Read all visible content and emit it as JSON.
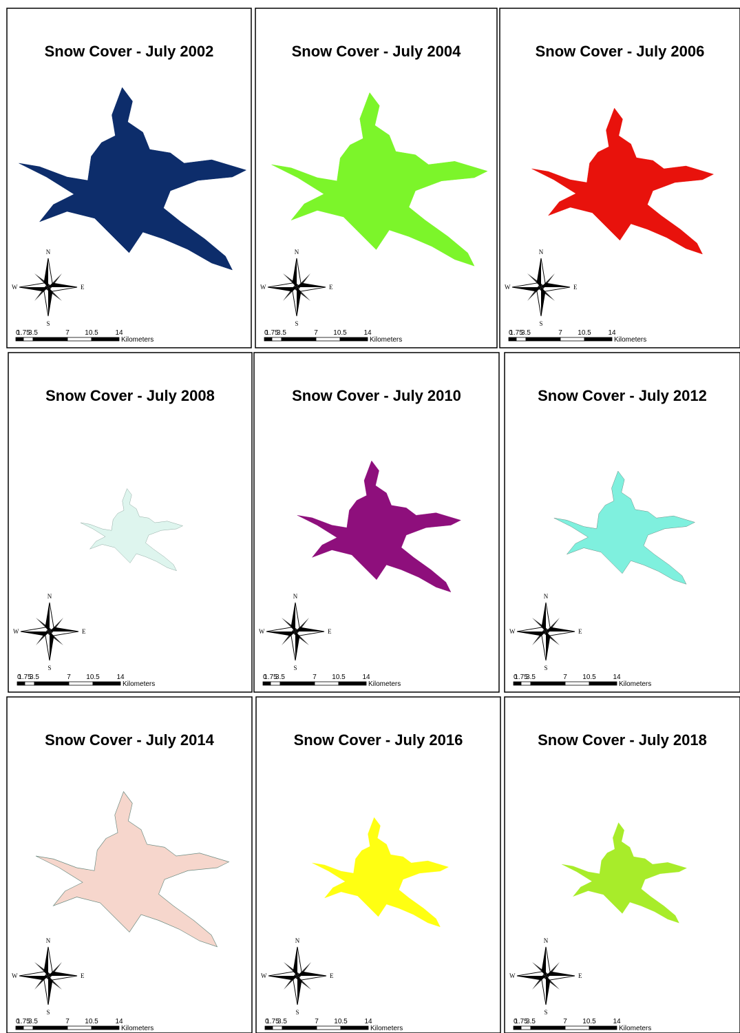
{
  "panels": [
    {
      "title": "Snow Cover - July 2002",
      "color": "#0d2d6b"
    },
    {
      "title": "Snow Cover - July 2004",
      "color": "#7cf52a"
    },
    {
      "title": "Snow Cover - July 2006",
      "color": "#e8120c"
    },
    {
      "title": "Snow Cover - July 2008",
      "color": "#def5ee"
    },
    {
      "title": "Snow Cover - July 2010",
      "color": "#8e0f7c"
    },
    {
      "title": "Snow Cover - July 2012",
      "color": "#7ff0de"
    },
    {
      "title": "Snow Cover - July 2014",
      "color": "#f6d6cc"
    },
    {
      "title": "Snow Cover - July 2016",
      "color": "#ffff12"
    },
    {
      "title": "Snow Cover - July 2018",
      "color": "#a8ec2a"
    }
  ],
  "compass": {
    "n": "N",
    "e": "E",
    "s": "S",
    "w": "W"
  },
  "scale": {
    "ticks": [
      "0",
      "1.75",
      "3.5",
      "7",
      "10.5",
      "14"
    ],
    "unit": "Kilometers"
  }
}
